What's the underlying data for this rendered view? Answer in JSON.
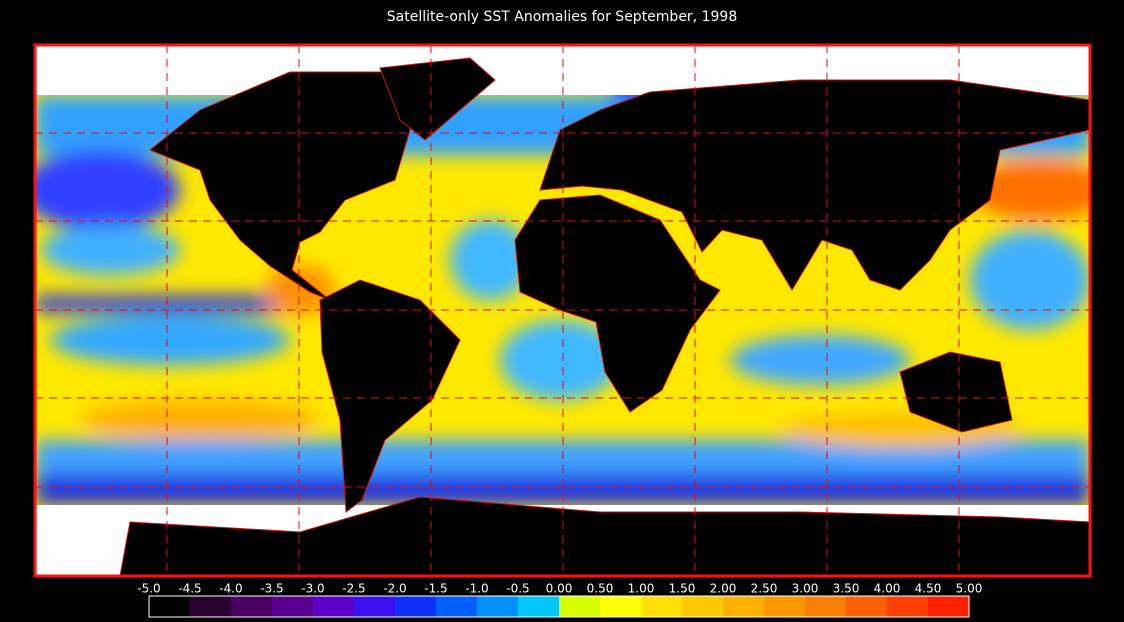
{
  "title": "Satellite-only SST Anomalies for September, 1998",
  "colorbar": {
    "labels": [
      "-5.0",
      "-4.5",
      "-4.0",
      "-3.5",
      "-3.0",
      "-2.5",
      "-2.0",
      "-1.5",
      "-1.0",
      "-0.5",
      "0.00",
      "0.50",
      "1.00",
      "1.50",
      "2.00",
      "2.50",
      "3.00",
      "3.50",
      "4.00",
      "4.50",
      "5.00"
    ],
    "colors": [
      "#000000",
      "#2a0030",
      "#4a0060",
      "#5a0090",
      "#5a00c8",
      "#3a10f0",
      "#1030ff",
      "#0060ff",
      "#0090ff",
      "#00c8ff",
      "#d8ff00",
      "#ffff00",
      "#ffe000",
      "#ffc800",
      "#ffb000",
      "#ff9800",
      "#ff8000",
      "#ff6000",
      "#ff4000",
      "#ff2000"
    ]
  }
}
